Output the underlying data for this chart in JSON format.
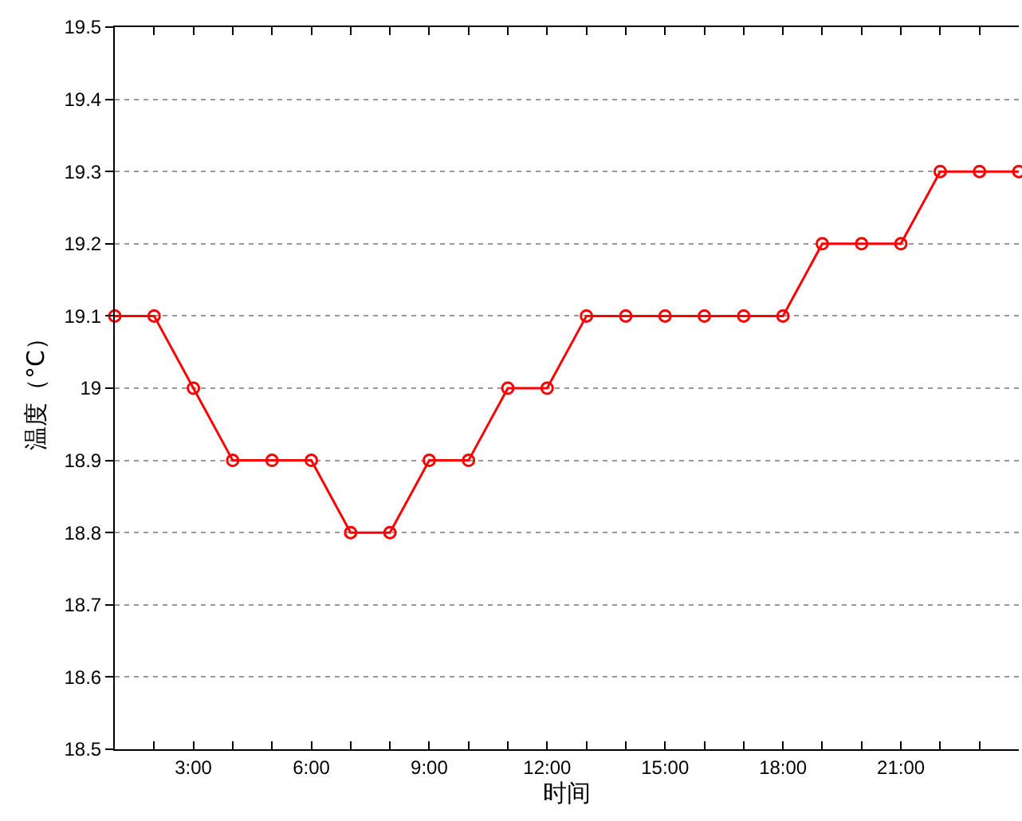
{
  "chart_data": {
    "type": "line",
    "xlabel": "时间",
    "ylabel": "温度（°C）",
    "x": [
      1,
      2,
      3,
      4,
      5,
      6,
      7,
      8,
      9,
      10,
      11,
      12,
      13,
      14,
      15,
      16,
      17,
      18,
      19,
      20,
      21,
      22,
      23,
      24
    ],
    "series": [
      {
        "color": "#ff0000",
        "values": [
          19.1,
          19.1,
          19.0,
          18.9,
          18.9,
          18.9,
          18.8,
          18.8,
          18.9,
          18.9,
          19.0,
          19.0,
          19.1,
          19.1,
          19.1,
          19.1,
          19.1,
          19.1,
          19.2,
          19.2,
          19.2,
          19.3,
          19.3,
          19.3
        ]
      }
    ],
    "xlim": [
      1,
      24
    ],
    "xticks": [
      {
        "value": 2,
        "label": null
      },
      {
        "value": 3,
        "label": "3:00"
      },
      {
        "value": 4,
        "label": null
      },
      {
        "value": 5,
        "label": null
      },
      {
        "value": 6,
        "label": "6:00"
      },
      {
        "value": 7,
        "label": null
      },
      {
        "value": 8,
        "label": null
      },
      {
        "value": 9,
        "label": "9:00"
      },
      {
        "value": 10,
        "label": null
      },
      {
        "value": 11,
        "label": null
      },
      {
        "value": 12,
        "label": "12:00"
      },
      {
        "value": 13,
        "label": null
      },
      {
        "value": 14,
        "label": null
      },
      {
        "value": 15,
        "label": "15:00"
      },
      {
        "value": 16,
        "label": null
      },
      {
        "value": 17,
        "label": null
      },
      {
        "value": 18,
        "label": "18:00"
      },
      {
        "value": 19,
        "label": null
      },
      {
        "value": 20,
        "label": null
      },
      {
        "value": 21,
        "label": "21:00"
      },
      {
        "value": 22,
        "label": null
      },
      {
        "value": 23,
        "label": null
      }
    ],
    "ylim": [
      18.5,
      19.5
    ],
    "yticks": [
      18.5,
      18.6,
      18.7,
      18.8,
      18.9,
      19,
      19.1,
      19.2,
      19.3,
      19.4,
      19.5
    ],
    "grid": "y",
    "marker": "circle",
    "line_style": "solid"
  }
}
